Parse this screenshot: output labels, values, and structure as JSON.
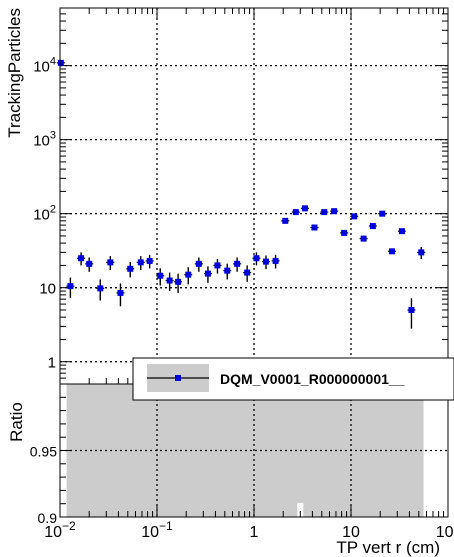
{
  "chart_data": [
    {
      "type": "scatter",
      "panel": "main",
      "ylabel": "TrackingParticles",
      "xscale": "log",
      "yscale": "log",
      "xlim": [
        0.01,
        100
      ],
      "ylim": [
        0.5,
        60000
      ],
      "grid": true,
      "y_tick_labels": [
        {
          "value": 1,
          "label": "1"
        },
        {
          "value": 10,
          "label": "10"
        },
        {
          "value": 100,
          "label": "10",
          "exp": "2"
        },
        {
          "value": 1000,
          "label": "10",
          "exp": "3"
        },
        {
          "value": 10000,
          "label": "10",
          "exp": "4"
        }
      ],
      "legend": {
        "placement": "bottom-right",
        "entries": [
          "DQM_V0001_R000000001__"
        ]
      },
      "series": [
        {
          "name": "DQM_V0001_R000000001__",
          "color": "#0000dd",
          "points": [
            {
              "x": 0.0102,
              "y": 10900,
              "err": 0
            },
            {
              "x": 0.0128,
              "y": 10.5,
              "err": 3.2
            },
            {
              "x": 0.0165,
              "y": 25,
              "err": 5
            },
            {
              "x": 0.02,
              "y": 21,
              "err": 4.6
            },
            {
              "x": 0.026,
              "y": 9.8,
              "err": 3.1
            },
            {
              "x": 0.033,
              "y": 22,
              "err": 4.7
            },
            {
              "x": 0.042,
              "y": 8.5,
              "err": 2.9
            },
            {
              "x": 0.053,
              "y": 18,
              "err": 4.2
            },
            {
              "x": 0.068,
              "y": 22,
              "err": 4.7
            },
            {
              "x": 0.084,
              "y": 23,
              "err": 4.8
            },
            {
              "x": 0.108,
              "y": 14.5,
              "err": 3.8
            },
            {
              "x": 0.135,
              "y": 12.5,
              "err": 3.5
            },
            {
              "x": 0.165,
              "y": 12,
              "err": 3.5
            },
            {
              "x": 0.21,
              "y": 15,
              "err": 3.9
            },
            {
              "x": 0.27,
              "y": 21,
              "err": 4.6
            },
            {
              "x": 0.335,
              "y": 15.5,
              "err": 3.9
            },
            {
              "x": 0.42,
              "y": 20,
              "err": 4.5
            },
            {
              "x": 0.53,
              "y": 17,
              "err": 4.1
            },
            {
              "x": 0.67,
              "y": 21,
              "err": 4.6
            },
            {
              "x": 0.85,
              "y": 16,
              "err": 4
            },
            {
              "x": 1.06,
              "y": 25,
              "err": 5
            },
            {
              "x": 1.33,
              "y": 22.5,
              "err": 4.7
            },
            {
              "x": 1.67,
              "y": 23,
              "err": 4.8
            },
            {
              "x": 2.1,
              "y": 80,
              "err": 0
            },
            {
              "x": 2.7,
              "y": 105,
              "err": 0
            },
            {
              "x": 3.35,
              "y": 118,
              "err": 0
            },
            {
              "x": 4.2,
              "y": 65,
              "err": 0
            },
            {
              "x": 5.3,
              "y": 105,
              "err": 0
            },
            {
              "x": 6.7,
              "y": 108,
              "err": 0
            },
            {
              "x": 8.5,
              "y": 55,
              "err": 0
            },
            {
              "x": 10.8,
              "y": 92,
              "err": 0
            },
            {
              "x": 13.5,
              "y": 46,
              "err": 0
            },
            {
              "x": 16.8,
              "y": 68,
              "err": 0
            },
            {
              "x": 21.0,
              "y": 100,
              "err": 0
            },
            {
              "x": 26.5,
              "y": 31,
              "err": 0
            },
            {
              "x": 33.5,
              "y": 58,
              "err": 0
            },
            {
              "x": 42.0,
              "y": 5,
              "err": 2.2
            },
            {
              "x": 53.0,
              "y": 30,
              "err": 5.5
            }
          ]
        }
      ]
    },
    {
      "type": "area",
      "panel": "ratio",
      "xlabel": "TP vert r (cm)",
      "ylabel": "Ratio",
      "xscale": "log",
      "xlim": [
        0.01,
        100
      ],
      "ylim": [
        0.9,
        1.0
      ],
      "grid": true,
      "x_tick_labels": [
        {
          "value": 0.01,
          "label": "10",
          "exp": "−2"
        },
        {
          "value": 0.1,
          "label": "10",
          "exp": "−1"
        },
        {
          "value": 1,
          "label": "1"
        },
        {
          "value": 10,
          "label": "10"
        },
        {
          "value": 100,
          "label": "10",
          "exp": "2"
        }
      ],
      "y_tick_labels": [
        {
          "value": 0.9,
          "label": "0.9"
        },
        {
          "value": 0.95,
          "label": "0.95"
        }
      ],
      "band": {
        "color": "#cccccc",
        "x_start": 0.0117,
        "x_end": 56,
        "y_low": 0.9,
        "y_high": 1.0,
        "gap_at_x": 3.0
      }
    }
  ]
}
